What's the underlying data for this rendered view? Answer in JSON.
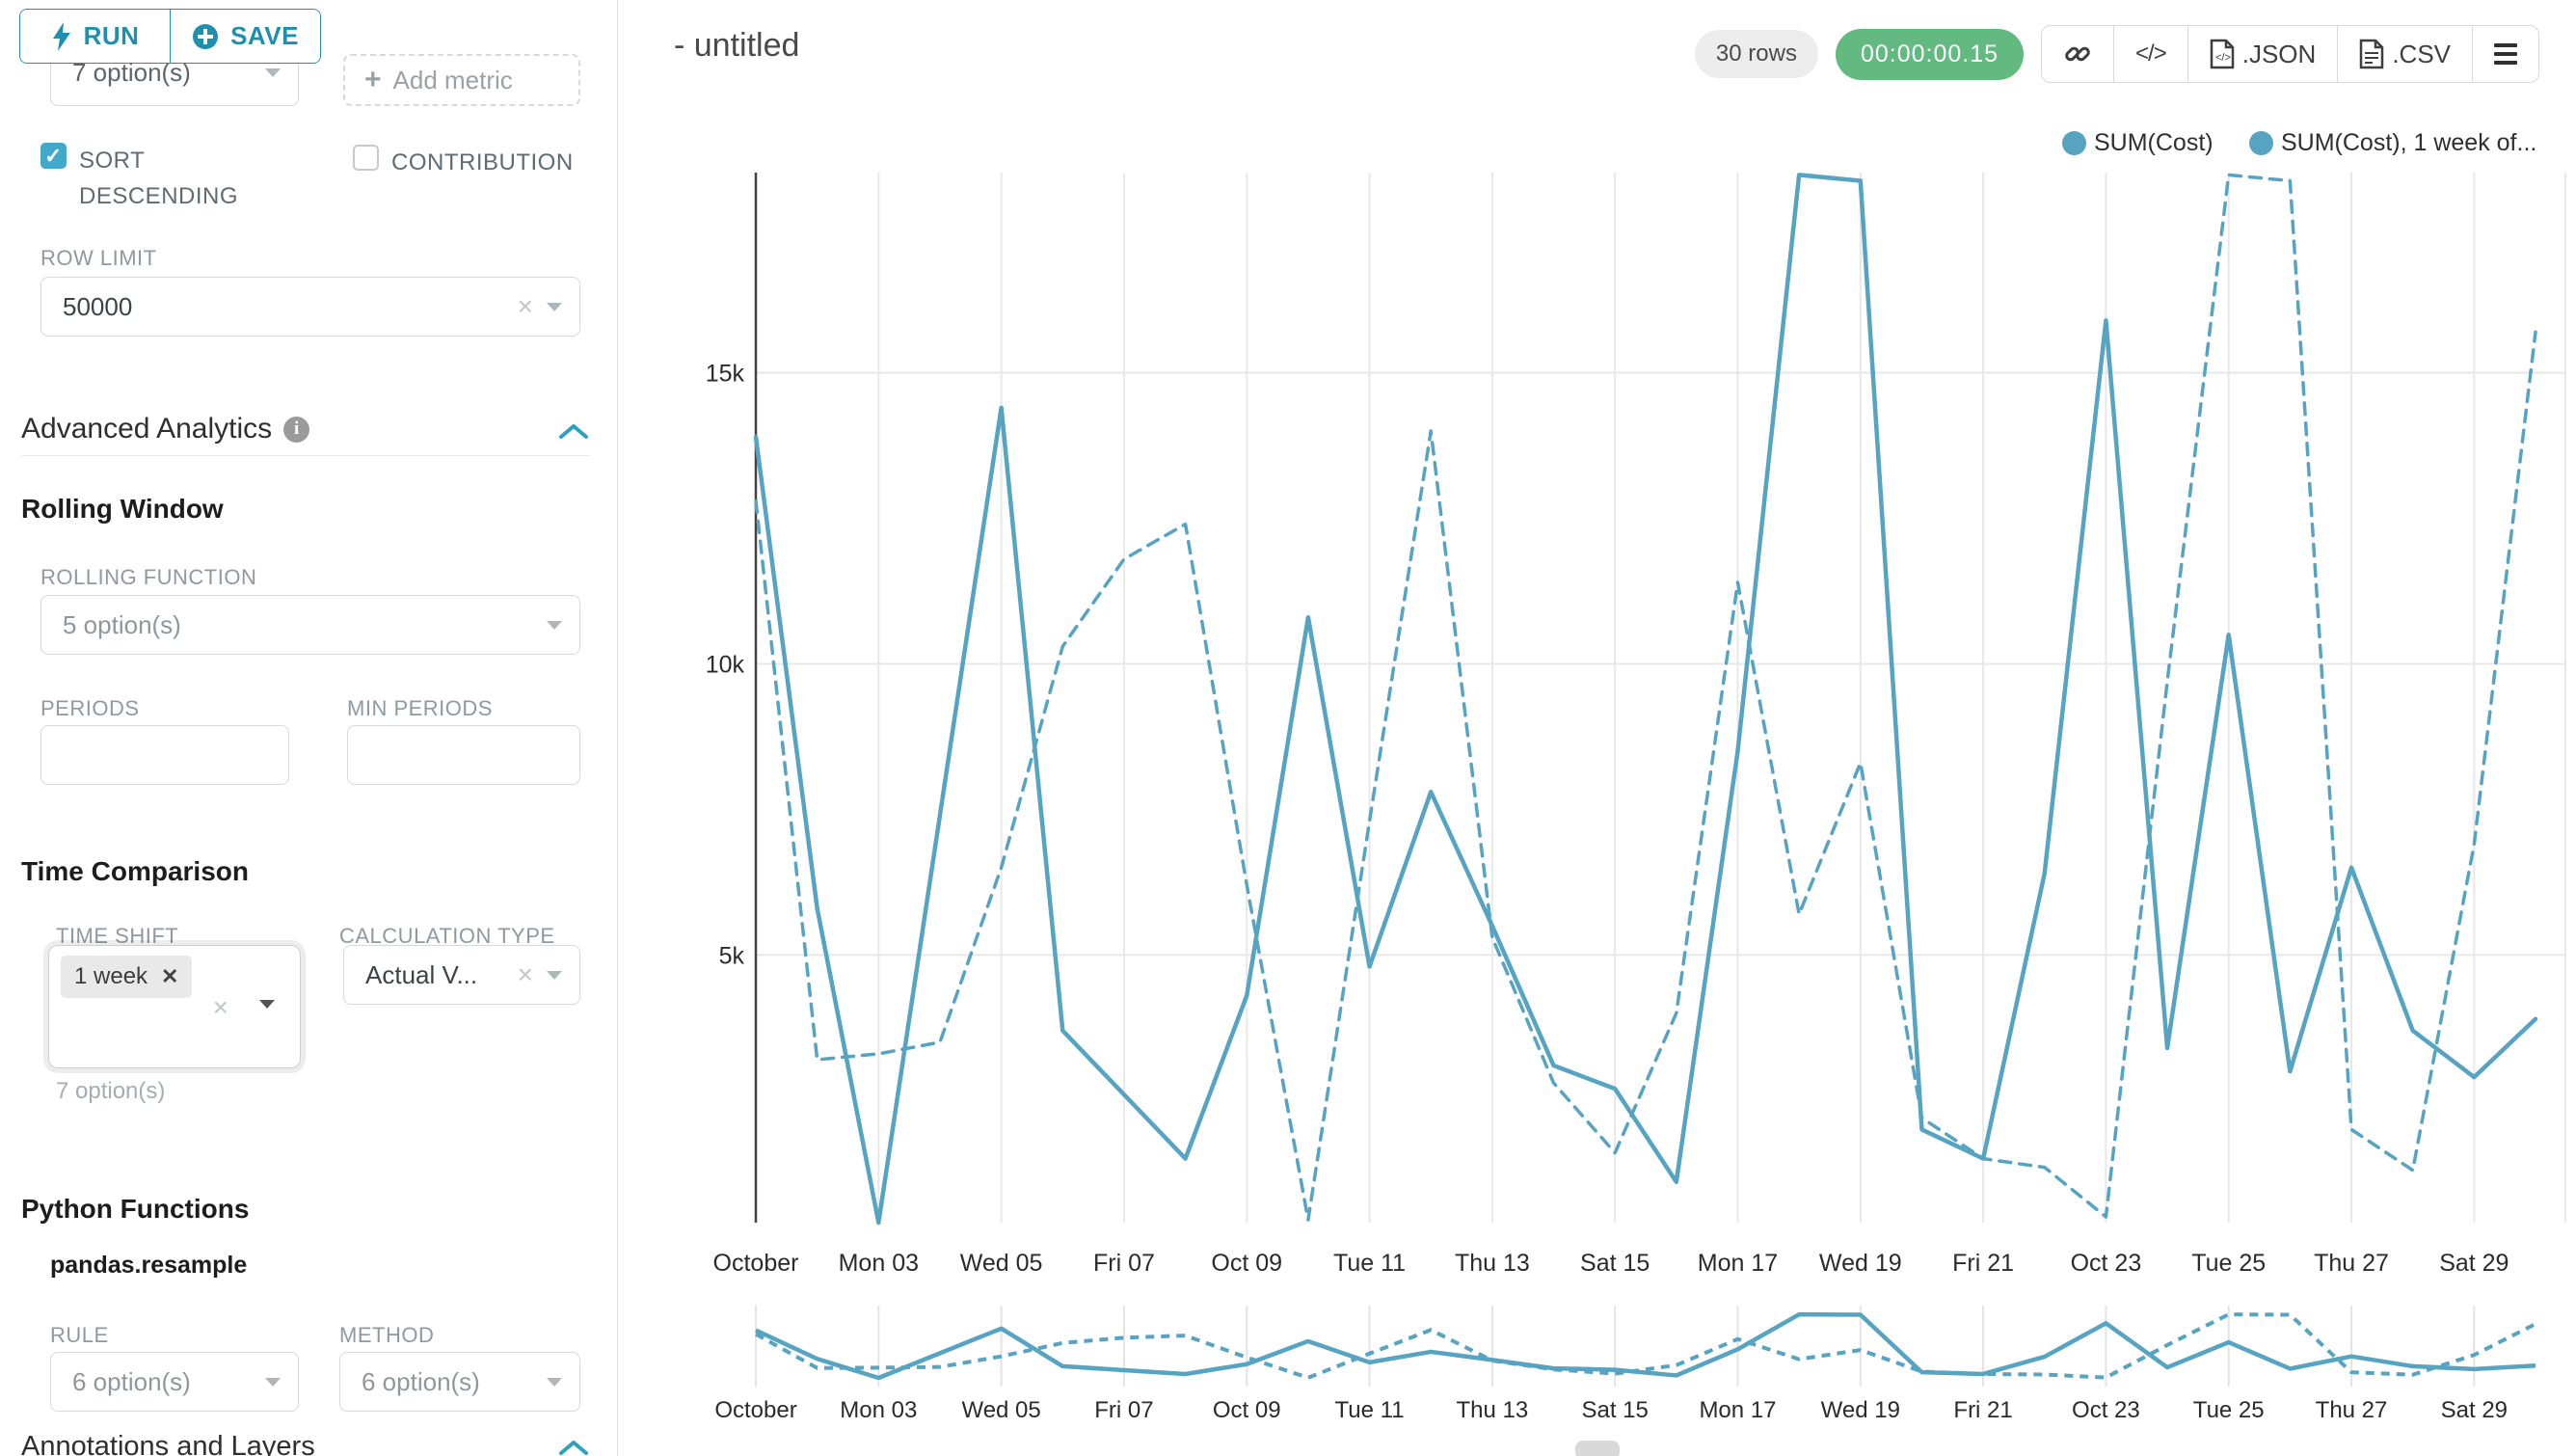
{
  "colors": {
    "line": "#56a3c2",
    "ui_teal": "#1f8faf",
    "checkbox_teal": "#41aacb",
    "chevron_teal": "#2fa0c0",
    "timer_green": "#62ba80",
    "grid": "#e8e8e8",
    "axis": "#444444",
    "tick_text": "#2b2b2b"
  },
  "sidebar": {
    "run_button": {
      "label": "RUN"
    },
    "save_button": {
      "label": "SAVE"
    },
    "metrics_select_value": "7 option(s)",
    "add_metric_label": "Add metric",
    "sort_descending": {
      "label": "SORT DESCENDING",
      "checked": true
    },
    "contribution": {
      "label": "CONTRIBUTION",
      "checked": false
    },
    "row_limit": {
      "label": "ROW LIMIT",
      "value": "50000"
    },
    "advanced_analytics": {
      "title": "Advanced Analytics",
      "rolling_window": {
        "title": "Rolling Window",
        "rolling_function": {
          "label": "ROLLING FUNCTION",
          "placeholder": "5 option(s)"
        },
        "periods": {
          "label": "PERIODS",
          "value": ""
        },
        "min_periods": {
          "label": "MIN PERIODS",
          "value": ""
        }
      },
      "time_comparison": {
        "title": "Time Comparison",
        "time_shift": {
          "label": "TIME SHIFT",
          "selected": "1 week",
          "hint": "7 option(s)"
        },
        "calculation_type": {
          "label": "CALCULATION TYPE",
          "value": "Actual V..."
        }
      },
      "python_functions": {
        "title": "Python Functions",
        "subtitle": "pandas.resample",
        "rule": {
          "label": "RULE",
          "placeholder": "6 option(s)"
        },
        "method": {
          "label": "METHOD",
          "placeholder": "6 option(s)"
        }
      },
      "annotations": {
        "title": "Annotations and Layers"
      }
    }
  },
  "header": {
    "title": "- untitled",
    "rows_badge": "30 rows",
    "timer_badge": "00:00:00.15",
    "buttons": {
      "code_icon": "</>",
      "json": ".JSON",
      "csv": ".CSV"
    }
  },
  "legend": {
    "items": [
      {
        "label": "SUM(Cost)"
      },
      {
        "label": "SUM(Cost), 1 week of..."
      }
    ]
  },
  "chart_data": {
    "type": "line",
    "title": "- untitled",
    "x": [
      "Oct 01",
      "Oct 02",
      "Oct 03",
      "Oct 04",
      "Oct 05",
      "Oct 06",
      "Oct 07",
      "Oct 08",
      "Oct 09",
      "Oct 10",
      "Oct 11",
      "Oct 12",
      "Oct 13",
      "Oct 14",
      "Oct 15",
      "Oct 16",
      "Oct 17",
      "Oct 18",
      "Oct 19",
      "Oct 20",
      "Oct 21",
      "Oct 22",
      "Oct 23",
      "Oct 24",
      "Oct 25",
      "Oct 26",
      "Oct 27",
      "Oct 28",
      "Oct 29",
      "Oct 30"
    ],
    "x_tick_labels": [
      "October",
      "Mon 03",
      "Wed 05",
      "Fri 07",
      "Oct 09",
      "Tue 11",
      "Thu 13",
      "Sat 15",
      "Mon 17",
      "Wed 19",
      "Fri 21",
      "Oct 23",
      "Tue 25",
      "Thu 27",
      "Sat 29"
    ],
    "y_ticks": [
      5000,
      10000,
      15000
    ],
    "y_tick_labels": [
      "5k",
      "10k",
      "15k"
    ],
    "y_domain": [
      400,
      18440
    ],
    "grid": true,
    "legend_position": "top-right",
    "has_mini_overview_chart": true,
    "series": [
      {
        "name": "SUM(Cost)",
        "line_style": "solid",
        "values": [
          13900,
          5800,
          400,
          7400,
          14400,
          3700,
          2600,
          1500,
          4300,
          10800,
          4800,
          7800,
          5500,
          3100,
          2700,
          1100,
          8500,
          18400,
          18300,
          2000,
          1500,
          6400,
          15900,
          3400,
          10500,
          3000,
          6500,
          3700,
          2900,
          3900
        ]
      },
      {
        "name": "SUM(Cost), 1 week offset",
        "line_style": "dashed",
        "values": [
          12800,
          3200,
          3300,
          3500,
          6500,
          10300,
          11800,
          12400,
          6200,
          450,
          7300,
          14000,
          5300,
          2800,
          1600,
          4000,
          11400,
          5700,
          8300,
          2200,
          1500,
          1350,
          500,
          9700,
          18400,
          18300,
          2000,
          1300,
          6900,
          15700
        ]
      }
    ]
  }
}
